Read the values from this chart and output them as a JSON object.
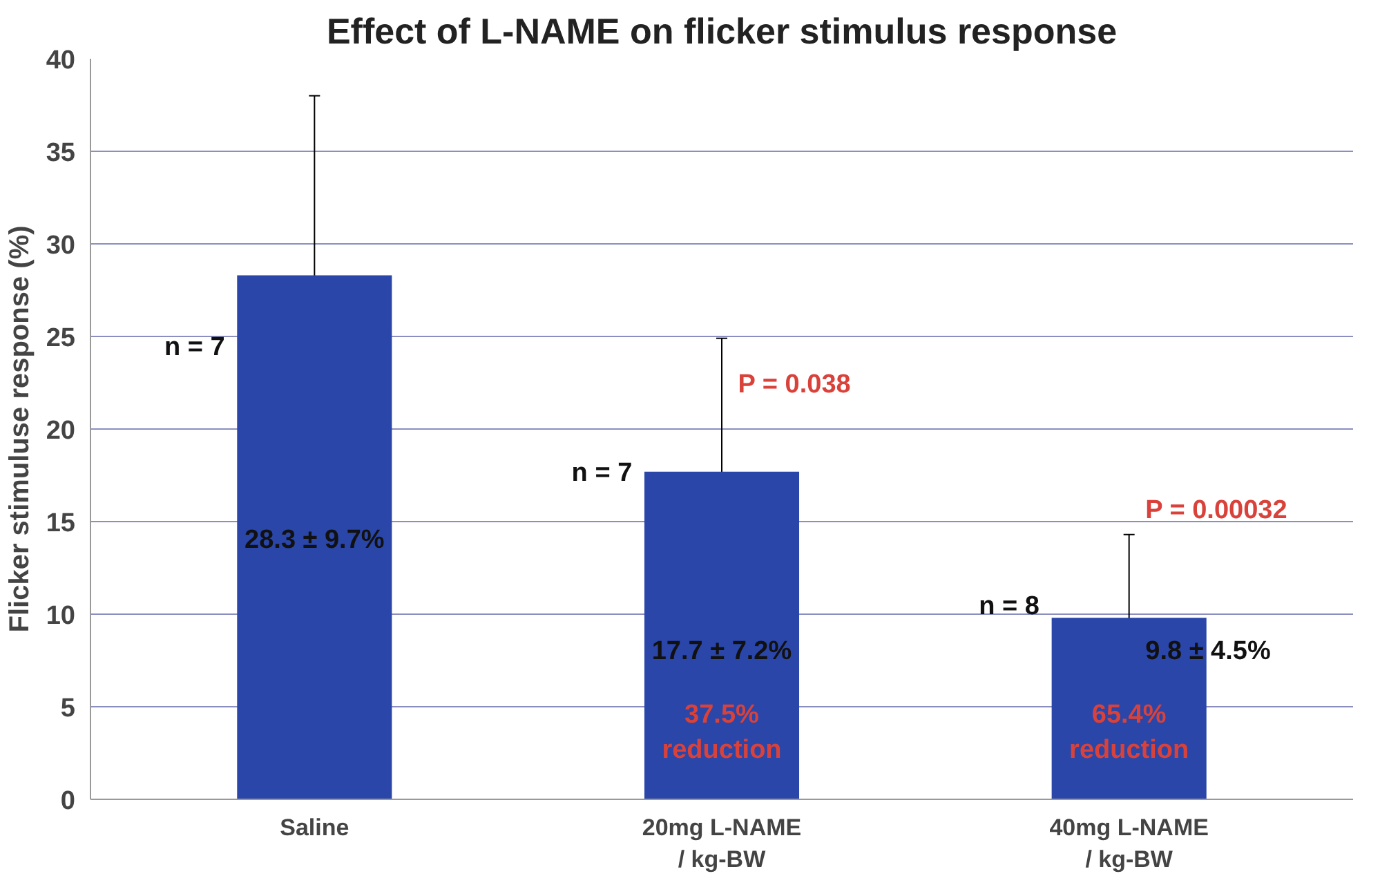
{
  "chart_data": {
    "type": "bar",
    "title": "Effect of L-NAME on flicker stimulus response",
    "ylabel": "Flicker stimuluse response (%)",
    "categories": [
      "Saline",
      "20mg L-NAME\n/ kg-BW",
      "40mg L-NAME\n/ kg-BW"
    ],
    "values": [
      28.3,
      17.7,
      9.8
    ],
    "errors": [
      9.7,
      7.2,
      4.5
    ],
    "color": "#2a46a8",
    "ylim": [
      0,
      40
    ],
    "yticks": [
      0,
      5,
      10,
      15,
      20,
      25,
      30,
      35,
      40
    ],
    "grid": "y",
    "annotations": [
      "n = 7",
      "28.3 ± 9.7%",
      "n = 7",
      "17.7 ± 7.2%",
      "P = 0.038",
      "37.5%\nreduction",
      "n = 8",
      "9.8 ± 4.5%",
      "P = 0.00032",
      "65.4%\nreduction"
    ]
  }
}
